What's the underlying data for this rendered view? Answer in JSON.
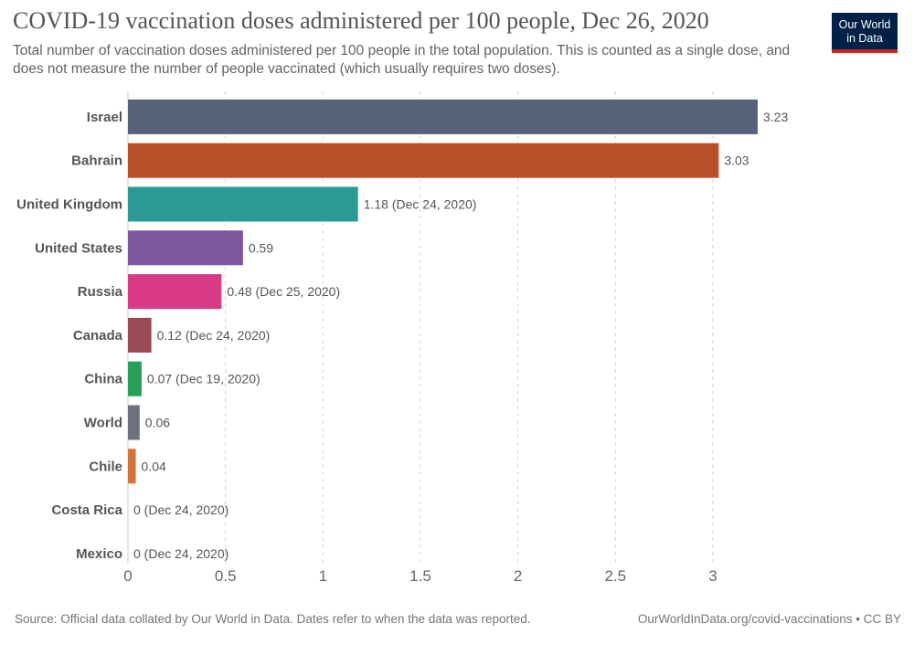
{
  "header": {
    "title": "COVID-19 vaccination doses administered per 100 people, Dec 26, 2020",
    "subtitle": "Total number of vaccination doses administered per 100 people in the total population. This is counted as a single dose, and does not measure the number of people vaccinated (which usually requires two doses).",
    "logo_line1": "Our World",
    "logo_line2": "in Data"
  },
  "chart_data": {
    "type": "bar",
    "orientation": "horizontal",
    "title": "COVID-19 vaccination doses administered per 100 people, Dec 26, 2020",
    "xlabel": "",
    "ylabel": "",
    "xlim": [
      0,
      3.23
    ],
    "xticks": [
      0,
      0.5,
      1,
      1.5,
      2,
      2.5,
      3
    ],
    "xtick_labels": [
      "0",
      "0.5",
      "1",
      "1.5",
      "2",
      "2.5",
      "3"
    ],
    "grid": "vertical dashed",
    "categories": [
      "Israel",
      "Bahrain",
      "United Kingdom",
      "United States",
      "Russia",
      "Canada",
      "China",
      "World",
      "Chile",
      "Costa Rica",
      "Mexico"
    ],
    "values": [
      3.23,
      3.03,
      1.18,
      0.59,
      0.48,
      0.12,
      0.07,
      0.06,
      0.04,
      0,
      0
    ],
    "value_labels": [
      "3.23",
      "3.03",
      "1.18 (Dec 24, 2020)",
      "0.59",
      "0.48 (Dec 25, 2020)",
      "0.12 (Dec 24, 2020)",
      "0.07 (Dec 19, 2020)",
      "0.06",
      "0.04",
      "0 (Dec 24, 2020)",
      "0 (Dec 24, 2020)"
    ],
    "colors": [
      "#56637a",
      "#b8502a",
      "#2a9b93",
      "#7e57a0",
      "#d83a86",
      "#9b4a55",
      "#27a05a",
      "#6c717c",
      "#d4733a",
      "#56637a",
      "#56637a"
    ]
  },
  "footer": {
    "source": "Source: Official data collated by Our World in Data. Dates refer to when the data was reported.",
    "credit": "OurWorldInData.org/covid-vaccinations • CC BY"
  }
}
